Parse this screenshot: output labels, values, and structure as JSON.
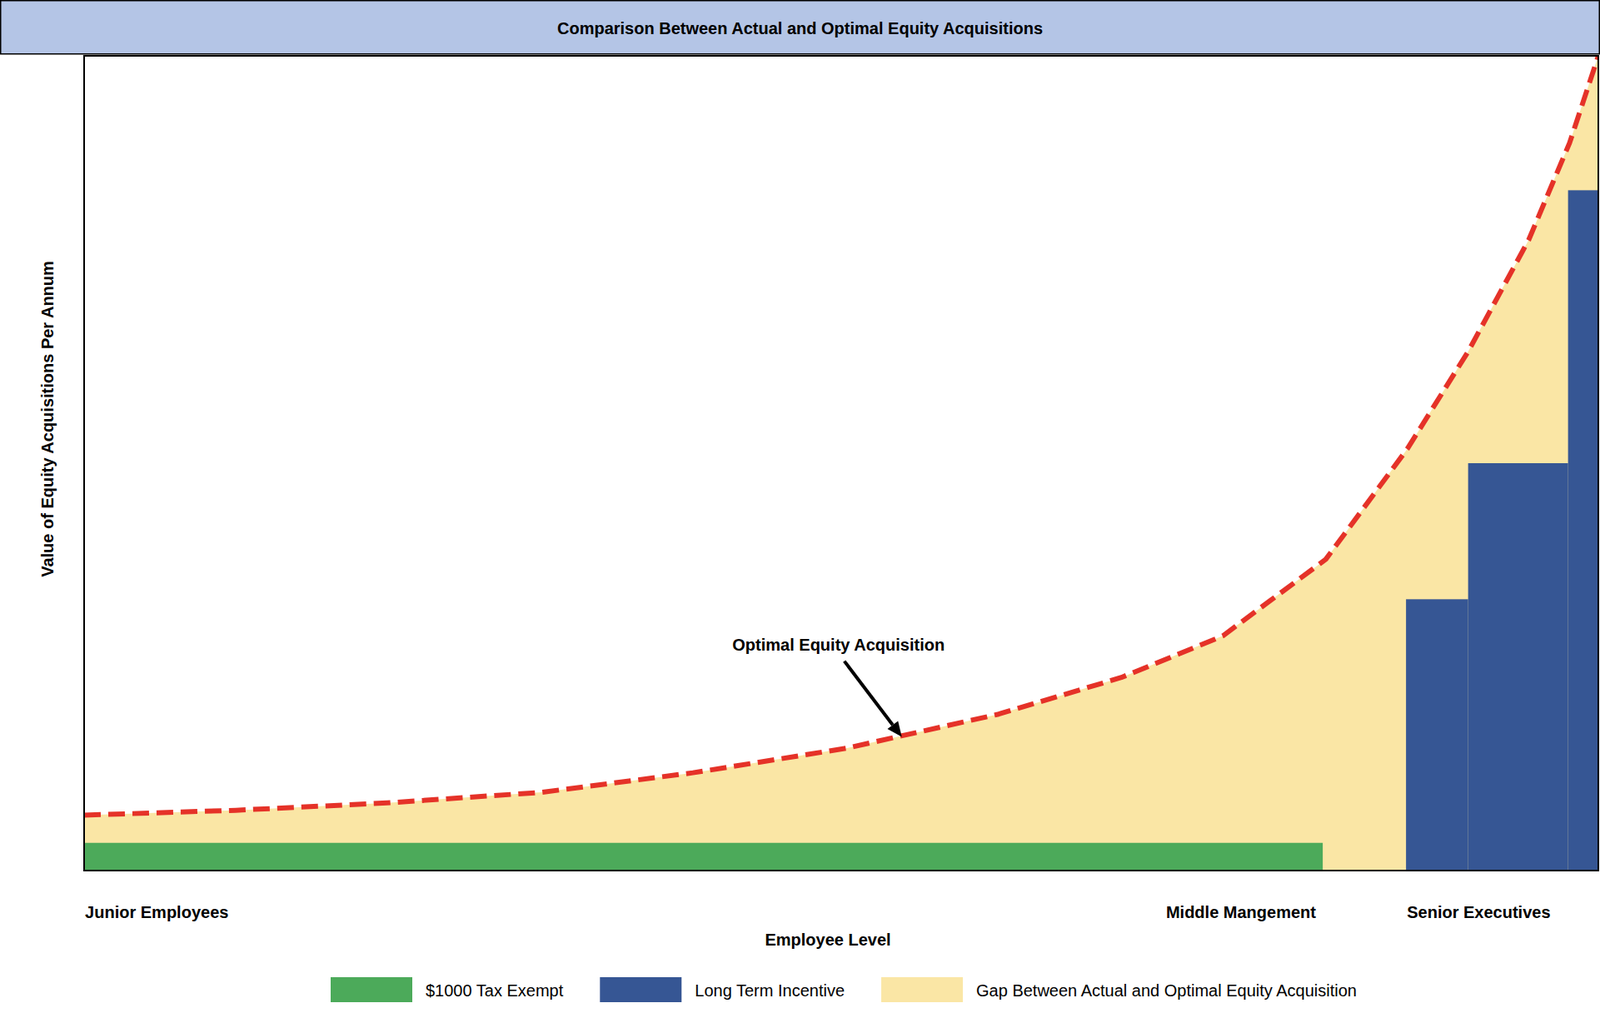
{
  "chart_data": {
    "type": "bar",
    "title": "Comparison Between Actual and Optimal Equity Acquisitions",
    "x_label": "Employee Level",
    "y_label": "Value of Equity Acquisitions Per Annum",
    "xlim": [
      0,
      100
    ],
    "ylim": [
      0,
      100
    ],
    "xticks": [
      {
        "value": 4.8,
        "label": "Junior Employees"
      },
      {
        "value": 76.4,
        "label": "Middle Mangement"
      },
      {
        "value": 92.1,
        "label": "Senior Executives"
      }
    ],
    "yticks": [],
    "tick_labels": "x",
    "grid": false,
    "legend": "bottom",
    "series": [
      {
        "name": "$1000 Tax Exempt",
        "type": "bar",
        "color": "#4caa5a",
        "bins": [
          0,
          81.8
        ],
        "values": [
          3.4
        ]
      },
      {
        "name": "Long Term Incentive",
        "type": "bar",
        "color": "#365694",
        "bins": [
          87.3,
          91.4,
          98.0,
          100
        ],
        "values": [
          33.3,
          50.0,
          83.5
        ]
      },
      {
        "name": "Gap Between Actual and Optimal Equity Acquisition",
        "type": "area",
        "color": "#fae6a5"
      },
      {
        "type": "line",
        "color": "#e53228",
        "line_style": "dashed",
        "x": [
          0,
          10,
          20,
          30.2,
          40.2,
          50.3,
          60.4,
          68.5,
          75.2,
          82,
          87.4,
          91.4,
          95.4,
          98.1,
          100
        ],
        "values": [
          6.8,
          7.4,
          8.3,
          9.6,
          12.0,
          15.0,
          19.2,
          23.7,
          28.8,
          38.2,
          51.8,
          63.7,
          77.4,
          89.3,
          100
        ]
      }
    ],
    "annotations": [
      {
        "text": "Optimal Equity Acquisition",
        "x": 54.0,
        "y": 16.4
      }
    ]
  }
}
